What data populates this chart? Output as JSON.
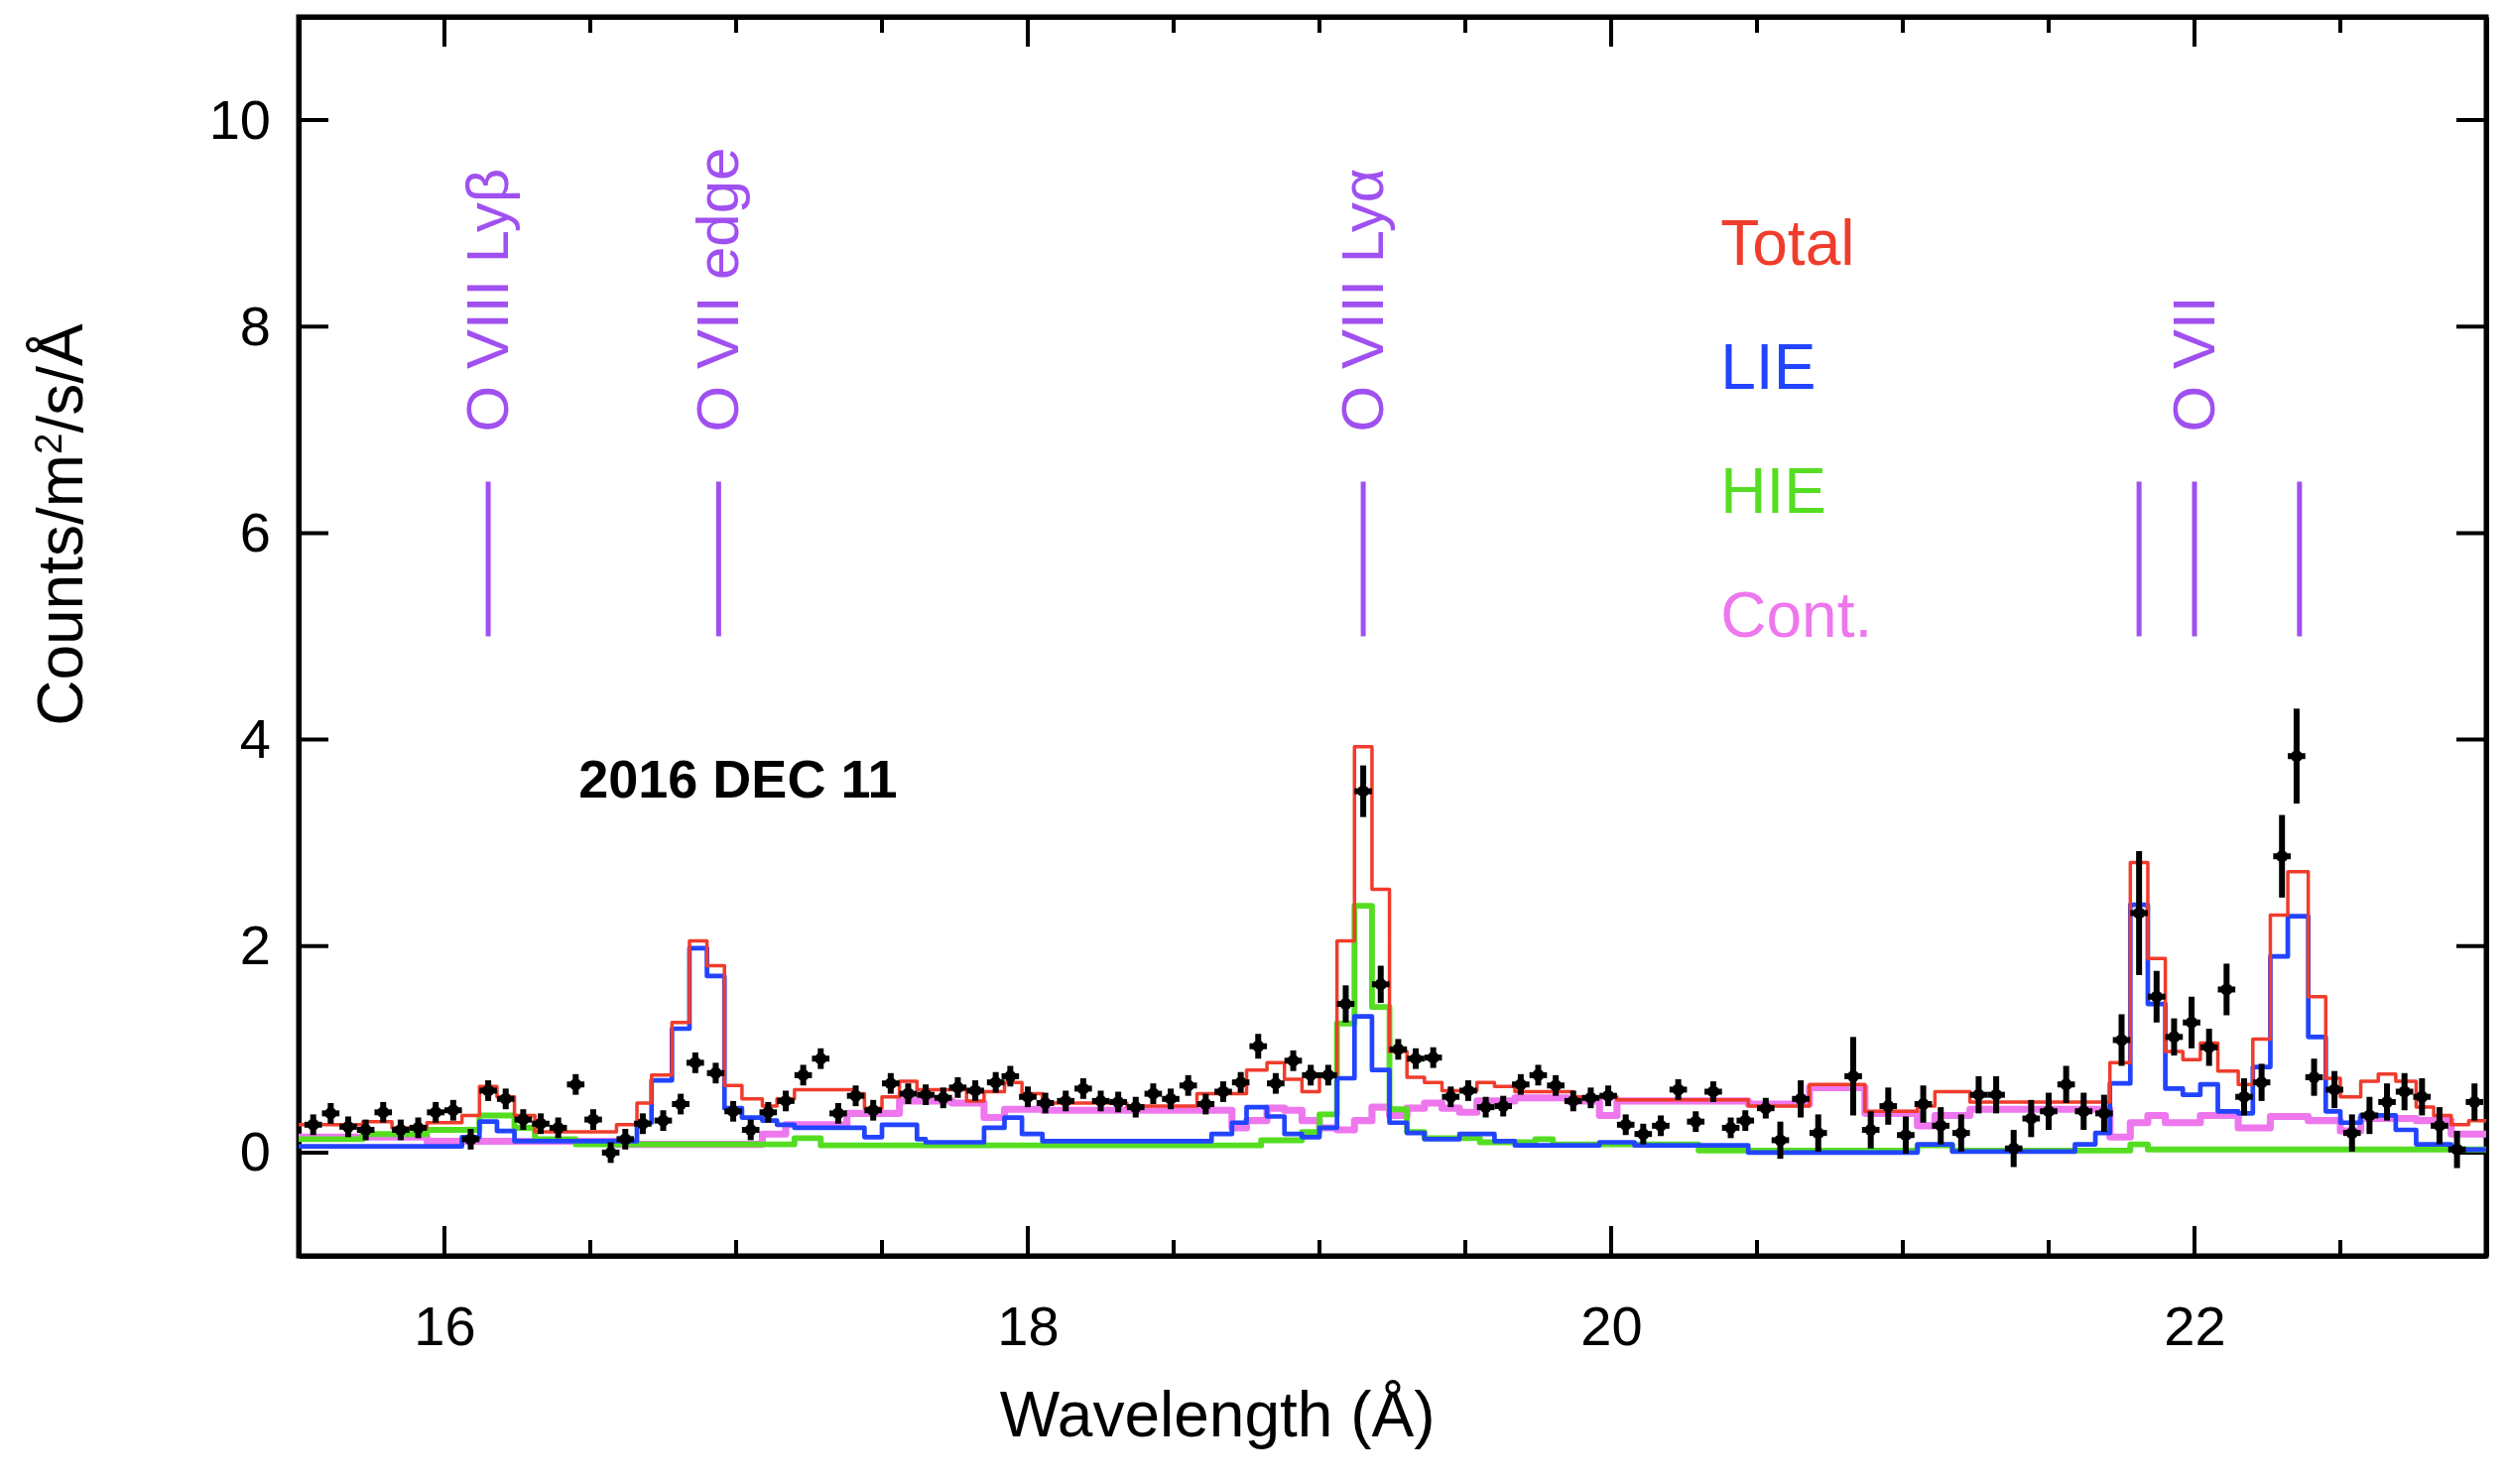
{
  "chart_data": {
    "type": "step",
    "xlabel": "Wavelength (Å)",
    "ylabel": "Counts/m$^{2}$/s/Å",
    "xlim": [
      15.5,
      23
    ],
    "ylim": [
      -1,
      11
    ],
    "xticks": [
      {
        "value": 15.5,
        "label": null
      },
      16,
      {
        "value": 16.5,
        "label": null
      },
      {
        "value": 17,
        "label": null
      },
      {
        "value": 17.5,
        "label": null
      },
      18,
      {
        "value": 18.5,
        "label": null
      },
      {
        "value": 19,
        "label": null
      },
      {
        "value": 19.5,
        "label": null
      },
      20,
      {
        "value": 20.5,
        "label": null
      },
      {
        "value": 21,
        "label": null
      },
      {
        "value": 21.5,
        "label": null
      },
      22,
      {
        "value": 22.5,
        "label": null
      }
    ],
    "yticks": [
      0,
      2,
      4,
      6,
      8,
      10
    ],
    "grid": false,
    "legend": "top right",
    "annotations": [
      "2016 DEC 11"
    ],
    "ref_lines": [
      {
        "axis": "x",
        "value": 16.15,
        "label": "O VIII Lyβ",
        "color": "#a050f0"
      },
      {
        "axis": "x",
        "value": 16.94,
        "label": "O VII edge",
        "color": "#a050f0"
      },
      {
        "axis": "x",
        "value": 19.15,
        "label": "O VIII Lyα",
        "color": "#a050f0"
      },
      {
        "axis": "x",
        "value": 21.81,
        "label": null,
        "color": "#a050f0"
      },
      {
        "axis": "x",
        "value": 22.0,
        "label": "O VII",
        "color": "#a050f0"
      },
      {
        "axis": "x",
        "value": 22.36,
        "label": null,
        "color": "#a050f0"
      }
    ],
    "series": [
      {
        "name": "Cont.",
        "color": "#ee77ee",
        "x": [
          15.5,
          15.94,
          16.59,
          17.09,
          17.17,
          17.38,
          17.56,
          17.74,
          17.85,
          17.92,
          18.05,
          18.7,
          18.75,
          18.82,
          18.88,
          18.94,
          19.0,
          19.06,
          19.12,
          19.18,
          19.24,
          19.3,
          19.36,
          19.42,
          19.48,
          19.54,
          19.67,
          19.85,
          19.96,
          20.02,
          20.47,
          20.68,
          20.87,
          21.05,
          21.11,
          21.23,
          21.71,
          21.78,
          21.84,
          21.9,
          22.02,
          22.15,
          22.26,
          22.39,
          22.5,
          22.57,
          22.76,
          22.88,
          23
        ],
        "values": [
          0.15,
          0.11,
          0.08,
          0.18,
          0.27,
          0.38,
          0.5,
          0.48,
          0.34,
          0.42,
          0.41,
          0.24,
          0.31,
          0.43,
          0.41,
          0.31,
          0.24,
          0.22,
          0.31,
          0.44,
          0.36,
          0.43,
          0.48,
          0.43,
          0.39,
          0.5,
          0.53,
          0.5,
          0.36,
          0.5,
          0.47,
          0.63,
          0.38,
          0.26,
          0.36,
          0.42,
          0.15,
          0.29,
          0.36,
          0.29,
          0.36,
          0.24,
          0.35,
          0.31,
          0.21,
          0.33,
          0.31,
          0.18,
          0.18
        ]
      },
      {
        "name": "HIE",
        "color": "#55dd22",
        "x": [
          15.5,
          15.72,
          15.94,
          16.12,
          16.24,
          16.31,
          16.45,
          17.2,
          17.29,
          18.8,
          18.94,
          19.0,
          19.06,
          19.12,
          19.18,
          19.24,
          19.3,
          19.36,
          19.55,
          19.74,
          19.8,
          20.3,
          21.05,
          21.17,
          21.78,
          21.84,
          23
        ],
        "values": [
          0.13,
          0.18,
          0.22,
          0.36,
          0.24,
          0.13,
          0.08,
          0.14,
          0.07,
          0.12,
          0.2,
          0.37,
          1.25,
          2.39,
          1.41,
          0.42,
          0.2,
          0.14,
          0.1,
          0.13,
          0.08,
          0.02,
          0.07,
          0.02,
          0.08,
          0.03,
          0.03
        ]
      },
      {
        "name": "LIE",
        "color": "#2244ff",
        "x": [
          15.5,
          16.06,
          16.12,
          16.18,
          16.24,
          16.66,
          16.71,
          16.78,
          16.84,
          16.9,
          16.96,
          17.02,
          17.09,
          17.14,
          17.2,
          17.44,
          17.5,
          17.62,
          17.65,
          17.85,
          17.92,
          17.98,
          18.05,
          18.63,
          18.7,
          18.75,
          18.82,
          18.88,
          18.94,
          19.0,
          19.06,
          19.12,
          19.18,
          19.24,
          19.3,
          19.36,
          19.48,
          19.6,
          19.67,
          19.96,
          20.08,
          20.47,
          21.05,
          21.17,
          21.59,
          21.66,
          21.71,
          21.78,
          21.84,
          21.9,
          21.96,
          22.02,
          22.08,
          22.15,
          22.2,
          22.26,
          22.32,
          22.39,
          22.45,
          22.5,
          22.57,
          22.69,
          22.76,
          22.88,
          23
        ],
        "values": [
          0.06,
          0.15,
          0.3,
          0.21,
          0.11,
          0.29,
          0.7,
          1.2,
          1.98,
          1.71,
          0.43,
          0.34,
          0.31,
          0.27,
          0.24,
          0.15,
          0.27,
          0.13,
          0.1,
          0.24,
          0.34,
          0.18,
          0.11,
          0.18,
          0.29,
          0.44,
          0.35,
          0.18,
          0.15,
          0.24,
          0.72,
          1.32,
          0.8,
          0.29,
          0.19,
          0.13,
          0.18,
          0.11,
          0.07,
          0.1,
          0.07,
          0.0,
          0.08,
          0.01,
          0.08,
          0.19,
          0.67,
          2.4,
          1.44,
          0.62,
          0.56,
          0.66,
          0.4,
          0.38,
          0.83,
          1.9,
          2.29,
          1.12,
          0.4,
          0.29,
          0.36,
          0.22,
          0.08,
          0.03,
          0.03
        ]
      },
      {
        "name": "Total",
        "color": "#f03c2c",
        "x": [
          15.5,
          15.72,
          15.82,
          15.94,
          16.06,
          16.12,
          16.18,
          16.24,
          16.31,
          16.59,
          16.66,
          16.71,
          16.78,
          16.84,
          16.9,
          16.96,
          17.02,
          17.09,
          17.14,
          17.2,
          17.4,
          17.44,
          17.5,
          17.56,
          17.62,
          17.79,
          17.85,
          17.92,
          17.98,
          18.05,
          18.34,
          18.58,
          18.75,
          18.82,
          18.88,
          18.94,
          19.0,
          19.06,
          19.12,
          19.18,
          19.24,
          19.3,
          19.36,
          19.42,
          19.54,
          19.6,
          19.67,
          19.87,
          20.02,
          20.47,
          20.68,
          20.87,
          21.05,
          21.11,
          21.23,
          21.71,
          21.78,
          21.84,
          21.9,
          21.96,
          22.02,
          22.08,
          22.15,
          22.2,
          22.26,
          22.32,
          22.39,
          22.45,
          22.5,
          22.57,
          22.63,
          22.69,
          22.76,
          22.82,
          22.88,
          22.94,
          23
        ],
        "values": [
          0.27,
          0.3,
          0.24,
          0.29,
          0.36,
          0.64,
          0.54,
          0.36,
          0.2,
          0.27,
          0.48,
          0.75,
          1.26,
          2.05,
          1.81,
          0.65,
          0.52,
          0.45,
          0.52,
          0.61,
          0.57,
          0.43,
          0.54,
          0.69,
          0.61,
          0.5,
          0.59,
          0.68,
          0.57,
          0.48,
          0.45,
          0.57,
          0.8,
          0.87,
          0.71,
          0.59,
          0.75,
          2.05,
          3.93,
          2.55,
          0.98,
          0.73,
          0.68,
          0.6,
          0.68,
          0.64,
          0.59,
          0.54,
          0.51,
          0.45,
          0.66,
          0.4,
          0.45,
          0.59,
          0.49,
          0.87,
          2.81,
          1.88,
          0.98,
          0.9,
          1.06,
          0.79,
          0.66,
          1.1,
          2.3,
          2.72,
          1.51,
          0.72,
          0.54,
          0.69,
          0.76,
          0.69,
          0.44,
          0.36,
          0.27,
          0.31,
          0.31
        ]
      },
      {
        "color": "#000000",
        "type": "scatter",
        "x": [
          15.55,
          15.61,
          15.67,
          15.73,
          15.79,
          15.85,
          15.91,
          15.97,
          16.03,
          16.09,
          16.15,
          16.21,
          16.27,
          16.33,
          16.39,
          16.45,
          16.51,
          16.57,
          16.62,
          16.68,
          16.75,
          16.81,
          16.86,
          16.93,
          16.99,
          17.05,
          17.11,
          17.17,
          17.23,
          17.29,
          17.35,
          17.41,
          17.47,
          17.53,
          17.59,
          17.65,
          17.71,
          17.76,
          17.82,
          17.89,
          17.94,
          18.0,
          18.06,
          18.13,
          18.19,
          18.25,
          18.31,
          18.37,
          18.43,
          18.49,
          18.55,
          18.61,
          18.67,
          18.73,
          18.79,
          18.85,
          18.91,
          18.97,
          19.03,
          19.09,
          19.15,
          19.21,
          19.27,
          19.33,
          19.39,
          19.45,
          19.51,
          19.57,
          19.63,
          19.69,
          19.75,
          19.81,
          19.87,
          19.93,
          19.99,
          20.05,
          20.11,
          20.17,
          20.23,
          20.29,
          20.35,
          20.41,
          20.46,
          20.53,
          20.58,
          20.65,
          20.71,
          20.83,
          20.89,
          20.95,
          21.01,
          21.07,
          21.13,
          21.2,
          21.26,
          21.32,
          21.38,
          21.44,
          21.5,
          21.56,
          21.62,
          21.69,
          21.75,
          21.81,
          21.87,
          21.93,
          21.99,
          22.05,
          22.11,
          22.17,
          22.23,
          22.3,
          22.35,
          22.41,
          22.48,
          22.54,
          22.6,
          22.66,
          22.72,
          22.78,
          22.84,
          22.9,
          22.96
        ],
        "values": [
          0.27,
          0.38,
          0.25,
          0.22,
          0.39,
          0.22,
          0.24,
          0.39,
          0.41,
          0.13,
          0.6,
          0.52,
          0.32,
          0.28,
          0.24,
          0.66,
          0.32,
          0.0,
          0.13,
          0.28,
          0.31,
          0.47,
          0.87,
          0.77,
          0.4,
          0.22,
          0.39,
          0.5,
          0.75,
          0.91,
          0.38,
          0.55,
          0.41,
          0.67,
          0.57,
          0.56,
          0.53,
          0.63,
          0.6,
          0.68,
          0.74,
          0.54,
          0.48,
          0.5,
          0.62,
          0.5,
          0.49,
          0.44,
          0.57,
          0.52,
          0.65,
          0.47,
          0.59,
          0.68,
          1.03,
          0.67,
          0.89,
          0.75,
          0.75,
          1.44,
          3.5,
          1.63,
          1.0,
          0.91,
          0.92,
          0.54,
          0.6,
          0.44,
          0.45,
          0.66,
          0.75,
          0.65,
          0.5,
          0.53,
          0.55,
          0.27,
          0.18,
          0.26,
          0.61,
          0.3,
          0.59,
          0.24,
          0.31,
          0.43,
          0.12,
          0.52,
          0.19,
          0.74,
          0.22,
          0.45,
          0.17,
          0.47,
          0.26,
          0.19,
          0.56,
          0.56,
          0.04,
          0.33,
          0.4,
          0.66,
          0.4,
          0.38,
          1.09,
          2.32,
          1.51,
          1.12,
          1.26,
          1.02,
          1.58,
          0.54,
          0.68,
          2.87,
          3.84,
          0.73,
          0.61,
          0.19,
          0.36,
          0.49,
          0.59,
          0.54,
          0.26,
          0.03,
          0.49
        ],
        "errors": [
          0.1,
          0.1,
          0.1,
          0.1,
          0.1,
          0.1,
          0.1,
          0.1,
          0.1,
          0.1,
          0.1,
          0.1,
          0.1,
          0.1,
          0.1,
          0.1,
          0.1,
          0.1,
          0.1,
          0.1,
          0.1,
          0.1,
          0.1,
          0.1,
          0.1,
          0.1,
          0.1,
          0.1,
          0.1,
          0.1,
          0.1,
          0.1,
          0.1,
          0.1,
          0.1,
          0.1,
          0.1,
          0.1,
          0.1,
          0.1,
          0.1,
          0.1,
          0.1,
          0.1,
          0.1,
          0.1,
          0.1,
          0.1,
          0.1,
          0.1,
          0.1,
          0.1,
          0.1,
          0.1,
          0.12,
          0.1,
          0.1,
          0.1,
          0.1,
          0.18,
          0.25,
          0.18,
          0.1,
          0.1,
          0.1,
          0.1,
          0.1,
          0.1,
          0.1,
          0.1,
          0.1,
          0.1,
          0.1,
          0.1,
          0.1,
          0.1,
          0.1,
          0.1,
          0.1,
          0.1,
          0.1,
          0.1,
          0.1,
          0.1,
          0.18,
          0.18,
          0.18,
          0.38,
          0.18,
          0.18,
          0.18,
          0.18,
          0.18,
          0.18,
          0.18,
          0.18,
          0.18,
          0.18,
          0.18,
          0.18,
          0.18,
          0.18,
          0.25,
          0.6,
          0.25,
          0.18,
          0.25,
          0.18,
          0.25,
          0.18,
          0.18,
          0.4,
          0.46,
          0.18,
          0.18,
          0.18,
          0.18,
          0.18,
          0.18,
          0.18,
          0.18,
          0.18,
          0.18
        ],
        "xerrors": [
          0.03,
          0.03,
          0.03,
          0.03,
          0.03,
          0.03,
          0.03,
          0.03,
          0.03,
          0.03,
          0.03,
          0.03,
          0.03,
          0.03,
          0.03,
          0.03,
          0.03,
          0.03,
          0.03,
          0.03,
          0.03,
          0.03,
          0.03,
          0.03,
          0.03,
          0.03,
          0.03,
          0.03,
          0.03,
          0.03,
          0.03,
          0.03,
          0.03,
          0.03,
          0.03,
          0.03,
          0.03,
          0.03,
          0.03,
          0.03,
          0.03,
          0.03,
          0.03,
          0.03,
          0.03,
          0.03,
          0.03,
          0.03,
          0.03,
          0.03,
          0.03,
          0.03,
          0.03,
          0.03,
          0.03,
          0.03,
          0.03,
          0.03,
          0.03,
          0.03,
          0.03,
          0.03,
          0.03,
          0.03,
          0.03,
          0.03,
          0.03,
          0.03,
          0.03,
          0.03,
          0.03,
          0.03,
          0.03,
          0.03,
          0.03,
          0.03,
          0.03,
          0.03,
          0.03,
          0.03,
          0.03,
          0.03,
          0.03,
          0.03,
          0.03,
          0.03,
          0.03,
          0.03,
          0.03,
          0.03,
          0.03,
          0.03,
          0.03,
          0.03,
          0.03,
          0.03,
          0.03,
          0.03,
          0.03,
          0.03,
          0.03,
          0.03,
          0.03,
          0.03,
          0.03,
          0.03,
          0.03,
          0.03,
          0.03,
          0.03,
          0.03,
          0.03,
          0.03,
          0.03,
          0.03,
          0.03,
          0.03,
          0.03,
          0.03,
          0.03,
          0.03,
          0.03,
          0.03
        ]
      }
    ]
  }
}
